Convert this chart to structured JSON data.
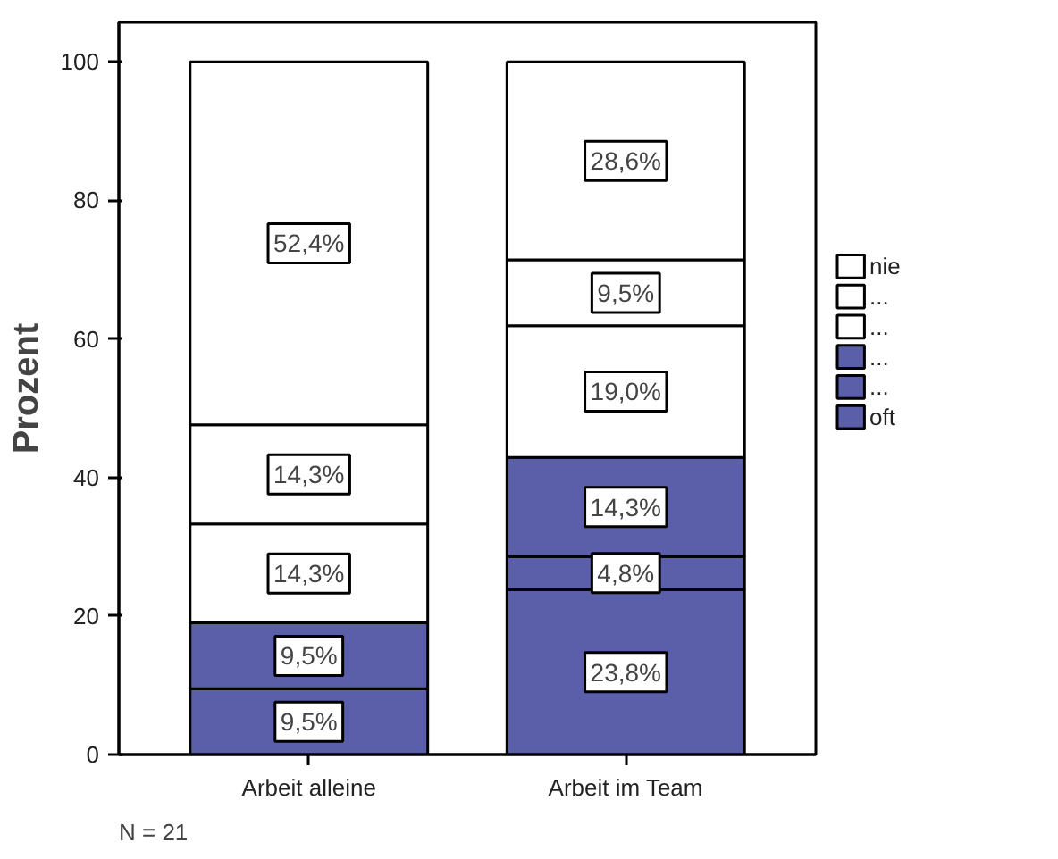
{
  "chart_data": {
    "type": "bar",
    "stacked": true,
    "ylabel": "Prozent",
    "categories": [
      "Arbeit alleine",
      "Arbeit im Team"
    ],
    "series": [
      {
        "name": "oft",
        "color": "#5b5ea8",
        "values": [
          9.5,
          23.8
        ],
        "value_labels": [
          "9,5%",
          "23,8%"
        ]
      },
      {
        "name": "...",
        "color": "#5b5ea8",
        "values": [
          9.5,
          4.8
        ],
        "value_labels": [
          "9,5%",
          "4,8%"
        ]
      },
      {
        "name": "...",
        "color": "#5b5ea8",
        "values": [
          0,
          14.3
        ],
        "value_labels": [
          null,
          "14,3%"
        ]
      },
      {
        "name": "...",
        "color": "#ffffff",
        "values": [
          14.3,
          19.0
        ],
        "value_labels": [
          "14,3%",
          "19,0%"
        ]
      },
      {
        "name": "...",
        "color": "#ffffff",
        "values": [
          14.3,
          9.5
        ],
        "value_labels": [
          "14,3%",
          "9,5%"
        ]
      },
      {
        "name": "nie",
        "color": "#ffffff",
        "values": [
          52.4,
          28.6
        ],
        "value_labels": [
          "52,4%",
          "28,6%"
        ]
      }
    ],
    "ylim": [
      0,
      105.7
    ],
    "yticks": [
      0,
      20,
      40,
      60,
      80,
      100
    ],
    "grid": false,
    "legend": "right",
    "annotations": [
      "N = 21"
    ]
  }
}
